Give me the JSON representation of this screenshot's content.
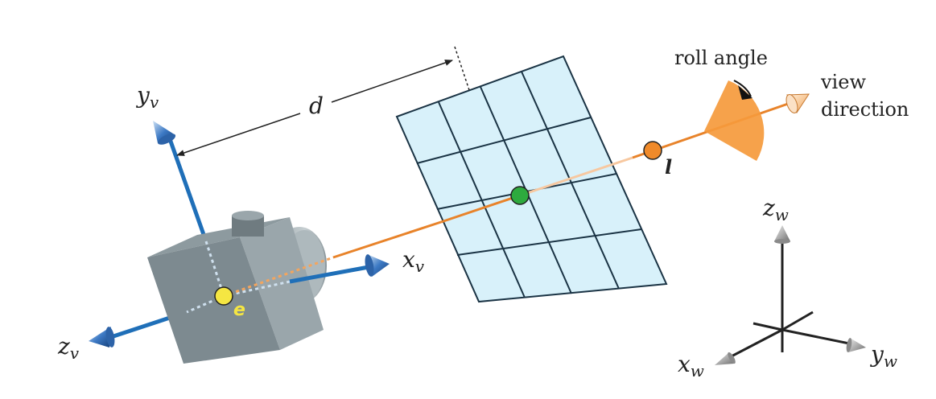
{
  "labels": {
    "yv": {
      "main": "y",
      "sub": "v"
    },
    "xv": {
      "main": "x",
      "sub": "v"
    },
    "zv": {
      "main": "z",
      "sub": "v"
    },
    "zw": {
      "main": "z",
      "sub": "w"
    },
    "xw": {
      "main": "x",
      "sub": "w"
    },
    "yw": {
      "main": "y",
      "sub": "w"
    },
    "d": "d",
    "eye": "e",
    "lookat": "l",
    "roll_angle": "roll angle",
    "view_line1": "view",
    "view_line2": "direction"
  },
  "colors": {
    "axis_view": "#1f6fb8",
    "view_ray": "#e8832a",
    "camera_body": "#7d8a90",
    "image_plane_fill": "#d8f1fa",
    "grid_line": "#1a3344",
    "eye_point": "#f5e642",
    "center_point": "#2eaa3e",
    "lookat_point": "#f08a2a",
    "world_axis": "#222222"
  },
  "icons": {
    "axis_tip_view": "blue-cone-arrow",
    "axis_tip_world": "grey-cone-arrow",
    "camera": "camera-box-icon",
    "roll": "roll-angle-wedge-icon"
  }
}
